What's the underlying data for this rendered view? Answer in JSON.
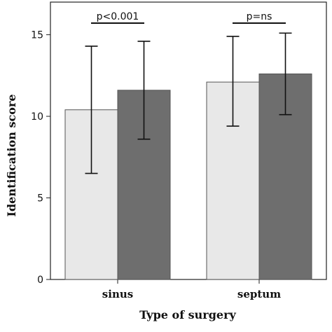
{
  "chart_data": {
    "type": "bar",
    "categories": [
      "sinus",
      "septum"
    ],
    "series": [
      {
        "values": [
          10.4,
          12.1
        ],
        "err_low": [
          6.5,
          9.4
        ],
        "err_high": [
          14.3,
          14.9
        ],
        "color": "#e8e8e8"
      },
      {
        "values": [
          11.6,
          12.6
        ],
        "err_low": [
          8.6,
          10.1
        ],
        "err_high": [
          14.6,
          15.1
        ],
        "color": "#6e6e6e"
      }
    ],
    "xlabel": "Type of surgery",
    "ylabel": "Identification score",
    "ylim": [
      0,
      17
    ],
    "yticks": [
      0,
      5,
      10,
      15
    ],
    "annotations": [
      {
        "text": "p<0.001",
        "category": "sinus"
      },
      {
        "text": "p=ns",
        "category": "septum"
      }
    ],
    "grid": false,
    "legend": "none"
  }
}
